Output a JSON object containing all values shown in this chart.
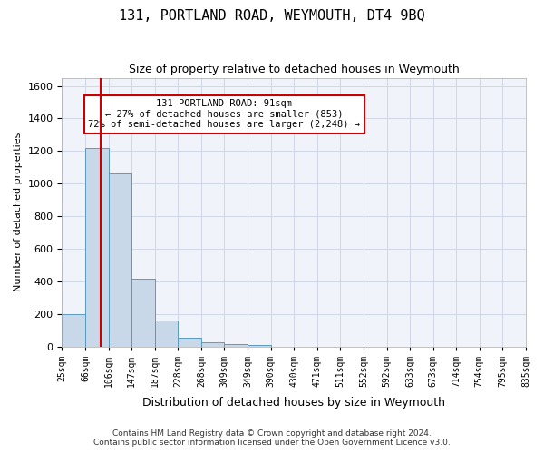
{
  "title": "131, PORTLAND ROAD, WEYMOUTH, DT4 9BQ",
  "subtitle": "Size of property relative to detached houses in Weymouth",
  "xlabel": "Distribution of detached houses by size in Weymouth",
  "ylabel": "Number of detached properties",
  "footer_line1": "Contains HM Land Registry data © Crown copyright and database right 2024.",
  "footer_line2": "Contains public sector information licensed under the Open Government Licence v3.0.",
  "bin_labels": [
    "25sqm",
    "66sqm",
    "106sqm",
    "147sqm",
    "187sqm",
    "228sqm",
    "268sqm",
    "309sqm",
    "349sqm",
    "390sqm",
    "430sqm",
    "471sqm",
    "511sqm",
    "552sqm",
    "592sqm",
    "633sqm",
    "673sqm",
    "714sqm",
    "754sqm",
    "795sqm",
    "835sqm"
  ],
  "bar_values": [
    200,
    1220,
    1060,
    415,
    160,
    55,
    25,
    15,
    10,
    0,
    0,
    0,
    0,
    0,
    0,
    0,
    0,
    0,
    0,
    0
  ],
  "bar_color": "#c8d8e8",
  "bar_edge_color": "#5a9abf",
  "property_line_x": 1.65,
  "property_line_color": "#cc0000",
  "annotation_text": "131 PORTLAND ROAD: 91sqm\n← 27% of detached houses are smaller (853)\n72% of semi-detached houses are larger (2,248) →",
  "annotation_box_color": "#ffffff",
  "annotation_box_edge_color": "#cc0000",
  "ylim": [
    0,
    1650
  ],
  "yticks": [
    0,
    200,
    400,
    600,
    800,
    1000,
    1200,
    1400,
    1600
  ],
  "grid_color": "#d0d8e8",
  "background_color": "#f0f4fa"
}
